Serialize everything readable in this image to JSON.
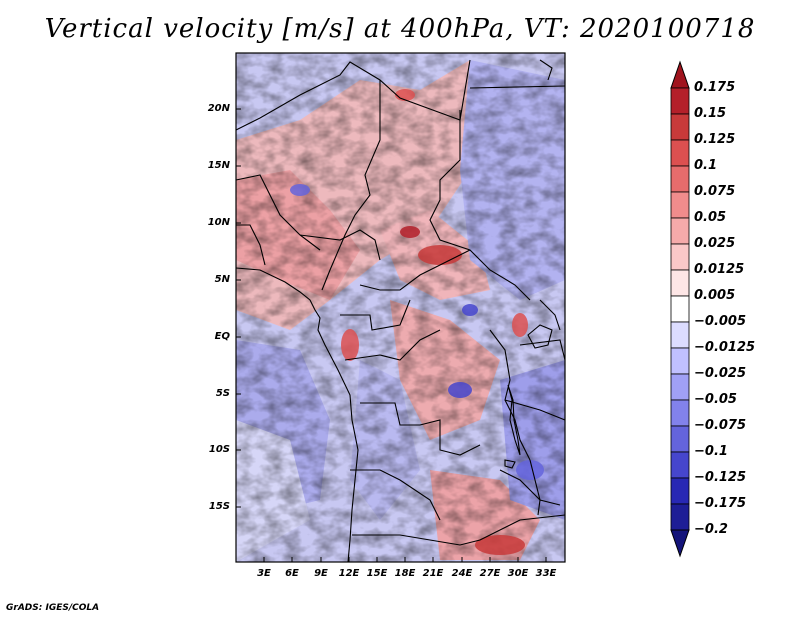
{
  "title": "Vertical velocity [m/s] at 400hPa, VT: 2020100718",
  "footer": "GrADS: IGES/COLA",
  "map": {
    "y_ticks": [
      "20N",
      "15N",
      "10N",
      "5N",
      "EQ",
      "5S",
      "10S",
      "15S"
    ],
    "x_ticks": [
      "3E",
      "6E",
      "9E",
      "12E",
      "15E",
      "18E",
      "21E",
      "24E",
      "27E",
      "30E",
      "33E"
    ]
  },
  "colorbar": {
    "labels": [
      "0.175",
      "0.15",
      "0.125",
      "0.1",
      "0.075",
      "0.05",
      "0.025",
      "0.0125",
      "0.005",
      "−0.005",
      "−0.0125",
      "−0.025",
      "−0.05",
      "−0.075",
      "−0.1",
      "−0.125",
      "−0.175",
      "−0.2"
    ],
    "colors": [
      "#a0141e",
      "#b4202a",
      "#c83a3a",
      "#dc5050",
      "#e66c6c",
      "#f08c8c",
      "#f5aaaa",
      "#fac8c8",
      "#fde6e6",
      "#ffffff",
      "#dcdcff",
      "#c0c0ff",
      "#a0a0f5",
      "#8282eb",
      "#6464dc",
      "#4646cd",
      "#2828b4",
      "#1e1e96",
      "#14147a"
    ]
  }
}
